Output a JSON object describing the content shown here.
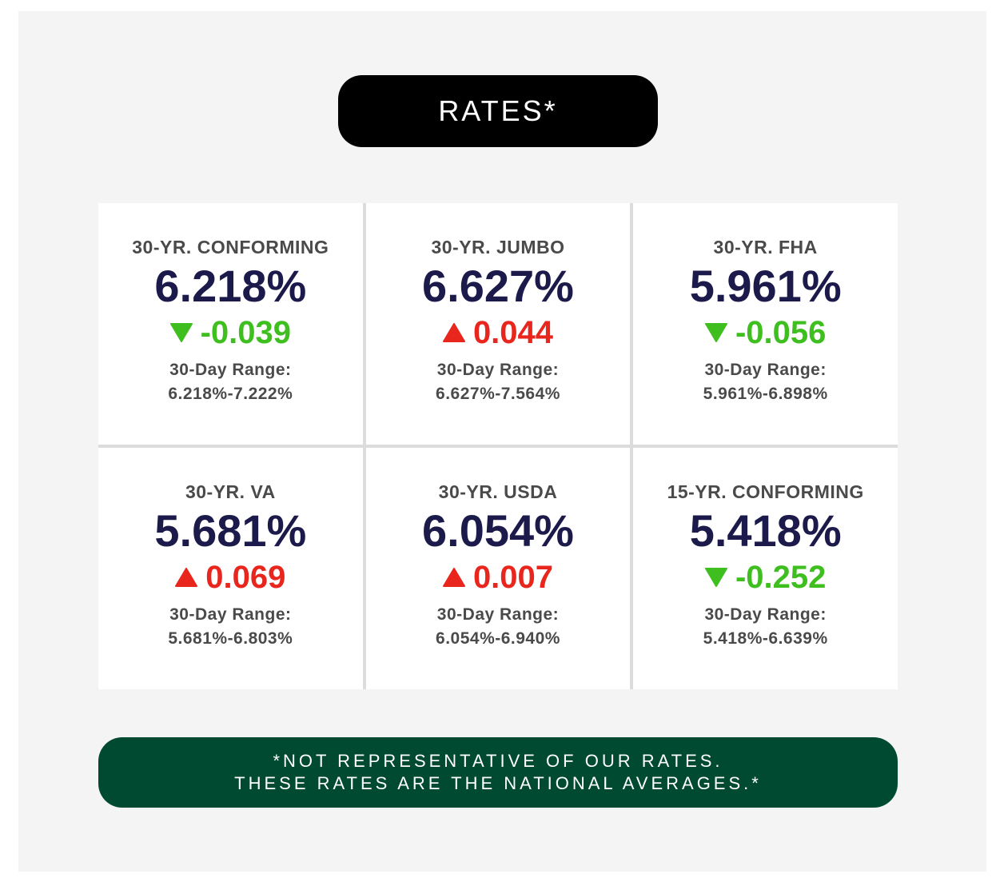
{
  "header": {
    "title": "RATES*"
  },
  "colors": {
    "down": "#3fbf1f",
    "up": "#e8261d",
    "rate": "#1b1a4a",
    "footer_bg": "#004a31"
  },
  "rates": [
    {
      "title": "30-YR. CONFORMING",
      "rate": "6.218%",
      "direction": "down",
      "change": "-0.039",
      "range_label": "30-Day Range:",
      "range": "6.218%-7.222%"
    },
    {
      "title": "30-YR. JUMBO",
      "rate": "6.627%",
      "direction": "up",
      "change": "0.044",
      "range_label": "30-Day Range:",
      "range": "6.627%-7.564%"
    },
    {
      "title": "30-YR. FHA",
      "rate": "5.961%",
      "direction": "down",
      "change": "-0.056",
      "range_label": "30-Day Range:",
      "range": "5.961%-6.898%"
    },
    {
      "title": "30-YR. VA",
      "rate": "5.681%",
      "direction": "up",
      "change": "0.069",
      "range_label": "30-Day Range:",
      "range": "5.681%-6.803%"
    },
    {
      "title": "30-YR. USDA",
      "rate": "6.054%",
      "direction": "up",
      "change": "0.007",
      "range_label": "30-Day Range:",
      "range": "6.054%-6.940%"
    },
    {
      "title": "15-YR. CONFORMING",
      "rate": "5.418%",
      "direction": "down",
      "change": "-0.252",
      "range_label": "30-Day Range:",
      "range": "5.418%-6.639%"
    }
  ],
  "footer": {
    "line1": "*NOT REPRESENTATIVE OF OUR RATES.",
    "line2": "THESE RATES ARE THE NATIONAL AVERAGES.*"
  }
}
